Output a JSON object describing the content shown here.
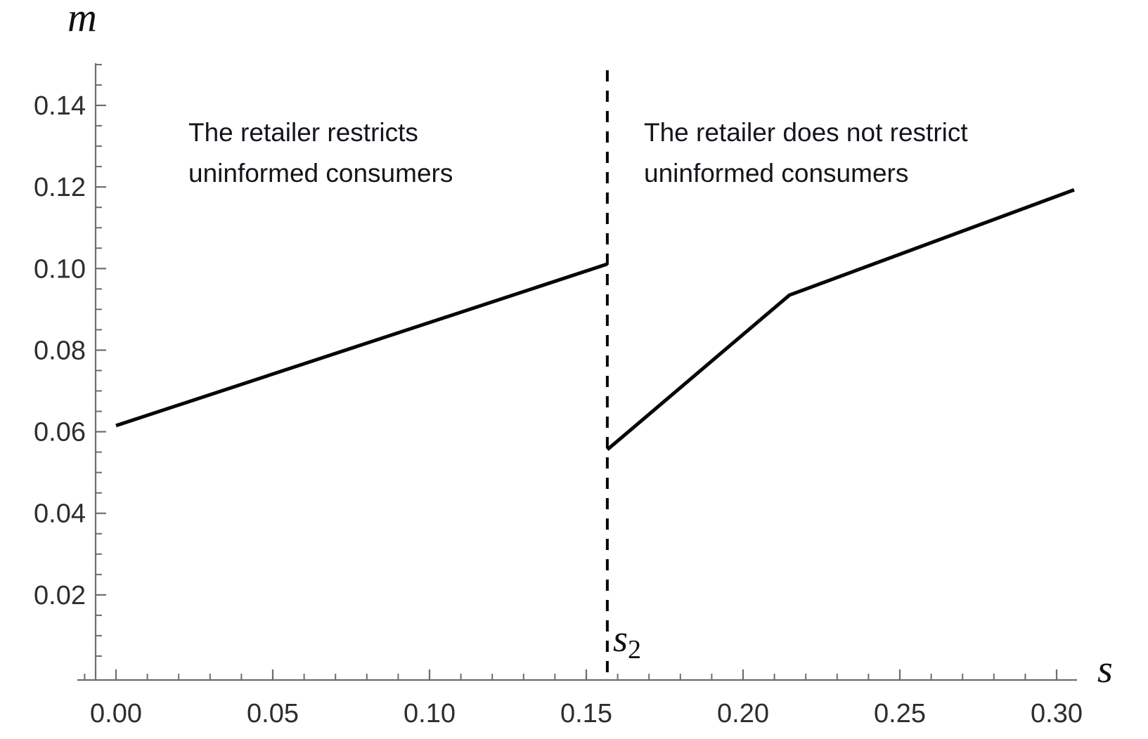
{
  "colors": {
    "background": "#ffffff",
    "axis": "#6d6d6d",
    "tick_label": "#2d2d2d",
    "curve": "#060606",
    "annotation_text": "#14141b"
  },
  "chart_data": {
    "type": "line",
    "title": "",
    "xlabel": "s",
    "ylabel": "m",
    "xlim": [
      -0.012,
      0.307
    ],
    "ylim": [
      0,
      0.151
    ],
    "grid": false,
    "legend": "none",
    "x_major_ticks": [
      0.0,
      0.05,
      0.1,
      0.15,
      0.2,
      0.25,
      0.3
    ],
    "x_major_tick_labels": [
      "0.00",
      "0.05",
      "0.10",
      "0.15",
      "0.20",
      "0.25",
      "0.30"
    ],
    "x_minor_step": 0.01,
    "y_major_ticks": [
      0.02,
      0.04,
      0.06,
      0.08,
      0.1,
      0.12,
      0.14
    ],
    "y_major_tick_labels": [
      "0.02",
      "0.04",
      "0.06",
      "0.08",
      "0.10",
      "0.12",
      "0.14"
    ],
    "y_minor_step": 0.005,
    "series": [
      {
        "name": "margin when retailer restricts uninformed consumers",
        "points": [
          [
            0.0,
            0.0615
          ],
          [
            0.1567,
            0.1011
          ]
        ]
      },
      {
        "name": "margin when retailer does not restrict uninformed consumers",
        "points": [
          [
            0.1567,
            0.0556
          ],
          [
            0.2148,
            0.0935
          ],
          [
            0.3056,
            0.1193
          ]
        ]
      }
    ],
    "threshold": {
      "s": 0.1567,
      "style": "dashed",
      "label_base": "s",
      "label_sub": "2"
    },
    "annotations": {
      "left": {
        "line1": "The retailer restricts",
        "line2": "uninformed consumers"
      },
      "right": {
        "line1": "The retailer does not restrict",
        "line2": "uninformed consumers"
      }
    }
  }
}
